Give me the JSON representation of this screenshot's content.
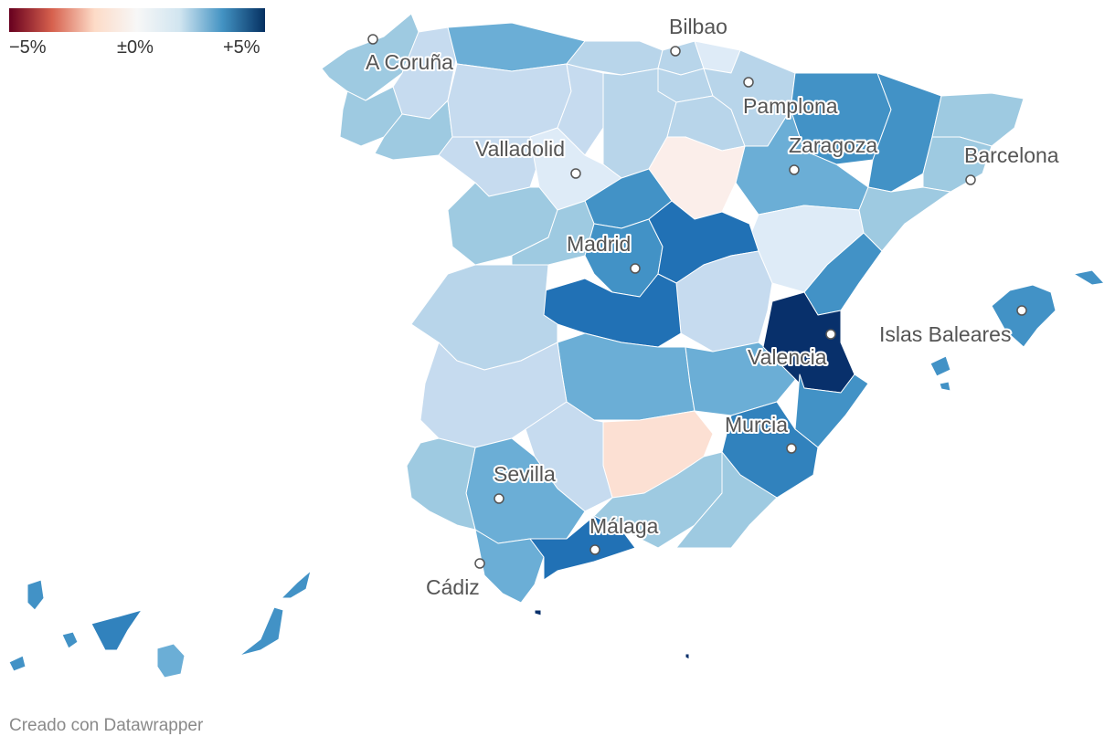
{
  "legend": {
    "min_label": "−5%",
    "mid_label": "±0%",
    "max_label": "+5%",
    "min_color": "#67001f",
    "mid_color": "#f7f7f7",
    "max_color": "#053061"
  },
  "cities": [
    {
      "name": "A Coruña"
    },
    {
      "name": "Bilbao"
    },
    {
      "name": "Pamplona"
    },
    {
      "name": "Zaragoza"
    },
    {
      "name": "Barcelona"
    },
    {
      "name": "Valladolid"
    },
    {
      "name": "Madrid"
    },
    {
      "name": "Islas Baleares"
    },
    {
      "name": "Valencia"
    },
    {
      "name": "Murcia"
    },
    {
      "name": "Sevilla"
    },
    {
      "name": "Málaga"
    },
    {
      "name": "Cádiz"
    }
  ],
  "credit": "Creado con Datawrapper"
}
